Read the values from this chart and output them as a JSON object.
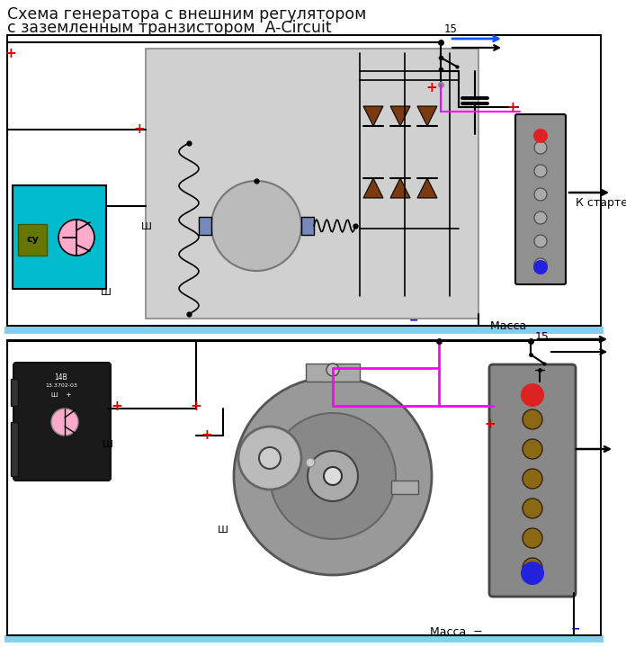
{
  "title_line1": "Схема генератора с внешним регулятором",
  "title_line2": "с заземленным транзистором  A-Circuit",
  "title_fontsize": 12.5,
  "bg_color": "#ffffff",
  "label_15": "15",
  "label_massa": "Масса  −",
  "label_starter": "К стартеру",
  "label_Sh": "Ш",
  "label_cy": "су",
  "plus_color": "#dd0000",
  "minus_color": "#0000cc",
  "ground_bar_color": "#87CEEB",
  "wire_pink": "#ff00ff",
  "wire_blue": "#1155ff",
  "wire_black": "#000000",
  "diode_color": "#7B3A10",
  "reg_cyan": "#00BBCC",
  "inner_gray": "#d0d0d0",
  "term_gray": "#909090"
}
